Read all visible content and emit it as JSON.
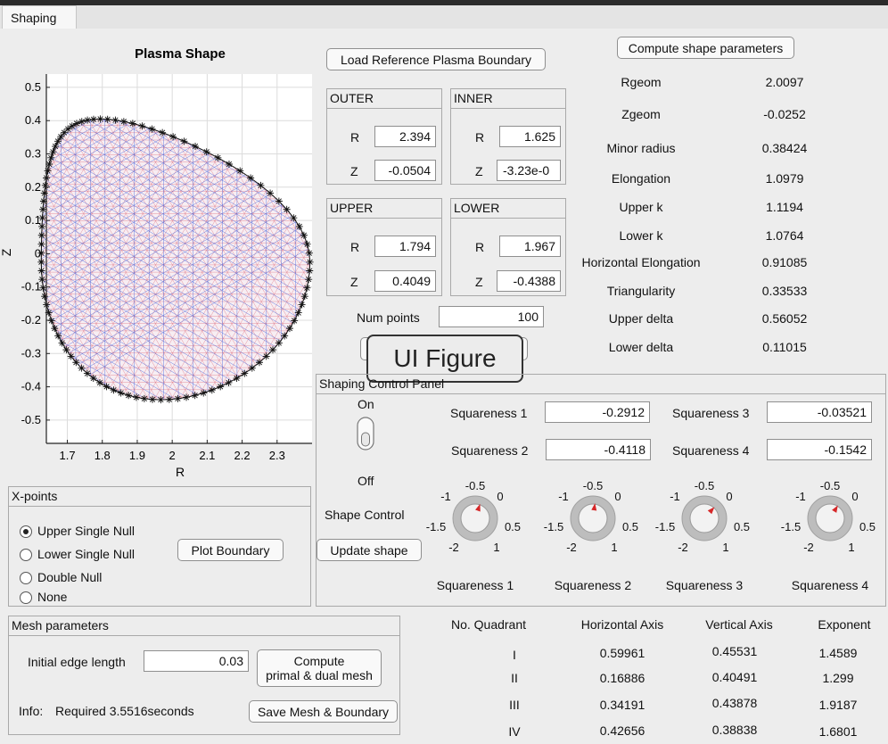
{
  "tab": "Shaping",
  "plot": {
    "title": "Plasma Shape",
    "xlabel": "R",
    "ylabel": "Z",
    "xticks": [
      "1.7",
      "1.8",
      "1.9",
      "2",
      "2.1",
      "2.2",
      "2.3"
    ],
    "yticks": [
      "0.5",
      "0.4",
      "0.3",
      "0.2",
      "0.1",
      "0",
      "-0.1",
      "-0.2",
      "-0.3",
      "-0.4",
      "-0.5"
    ],
    "xlim": [
      1.64,
      2.4
    ],
    "ylim": [
      -0.57,
      0.54
    ]
  },
  "buttons": {
    "load_ref": "Load Reference Plasma Boundary",
    "compute_shape": "Compute shape parameters",
    "plot_boundary": "Plot Boundary",
    "update_shape": "Update shape",
    "compute_mesh": "Compute\nprimal & dual mesh",
    "save_mesh": "Save Mesh & Boundary"
  },
  "points": {
    "outer": {
      "title": "OUTER",
      "r_label": "R",
      "z_label": "Z",
      "r": "2.394",
      "z": "-0.0504"
    },
    "inner": {
      "title": "INNER",
      "r_label": "R",
      "z_label": "Z",
      "r": "1.625",
      "z": "-3.23e-0"
    },
    "upper": {
      "title": "UPPER",
      "r_label": "R",
      "z_label": "Z",
      "r": "1.794",
      "z": "0.4049"
    },
    "lower": {
      "title": "LOWER",
      "r_label": "R",
      "z_label": "Z",
      "r": "1.967",
      "z": "-0.4388"
    }
  },
  "num_points": {
    "label": "Num points",
    "value": "100"
  },
  "overlay": "UI Figure",
  "shape_params": [
    {
      "name": "Rgeom",
      "value": "2.0097"
    },
    {
      "name": "Zgeom",
      "value": "-0.0252"
    },
    {
      "name": "Minor radius",
      "value": "0.38424"
    },
    {
      "name": "Elongation",
      "value": "1.0979"
    },
    {
      "name": "Upper k",
      "value": "1.1194"
    },
    {
      "name": "Lower k",
      "value": "1.0764"
    },
    {
      "name": "Horizontal Elongation",
      "value": "0.91085"
    },
    {
      "name": "Triangularity",
      "value": "0.33533"
    },
    {
      "name": "Upper delta",
      "value": "0.56052"
    },
    {
      "name": "Lower delta",
      "value": "0.11015"
    }
  ],
  "control_panel": {
    "title": "Shaping Control Panel",
    "on": "On",
    "off": "Off",
    "shape_control": "Shape Control",
    "sq1_label": "Squareness 1",
    "sq1": "-0.2912",
    "sq2_label": "Squareness 2",
    "sq2": "-0.4118",
    "sq3_label": "Squareness 3",
    "sq3": "-0.03521",
    "sq4_label": "Squareness 4",
    "sq4": "-0.1542",
    "knob_ticks": [
      "-0.5",
      "0",
      "0.5",
      "1",
      "-2",
      "-1.5",
      "-1"
    ],
    "knobs": [
      {
        "label": "Squareness 1",
        "value": -0.2912
      },
      {
        "label": "Squareness 2",
        "value": -0.4118
      },
      {
        "label": "Squareness 3",
        "value": -0.03521
      },
      {
        "label": "Squareness 4",
        "value": -0.1542
      }
    ]
  },
  "xpoints": {
    "title": "X-points",
    "options": [
      "Upper Single Null",
      "Lower Single Null",
      "Double Null",
      "None"
    ],
    "selected": 0
  },
  "mesh": {
    "title": "Mesh parameters",
    "edge_label": "Initial edge length",
    "edge_value": "0.03",
    "info_label": "Info:",
    "info_text": "Required 3.5516seconds"
  },
  "quadrants": {
    "headers": [
      "No. Quadrant",
      "Horizontal Axis",
      "Vertical Axis",
      "Exponent"
    ],
    "rows": [
      [
        "I",
        "0.59961",
        "0.45531",
        "1.4589"
      ],
      [
        "II",
        "0.16886",
        "0.40491",
        "1.299"
      ],
      [
        "III",
        "0.34191",
        "0.43878",
        "1.9187"
      ],
      [
        "IV",
        "0.42656",
        "0.38838",
        "1.6801"
      ]
    ]
  }
}
